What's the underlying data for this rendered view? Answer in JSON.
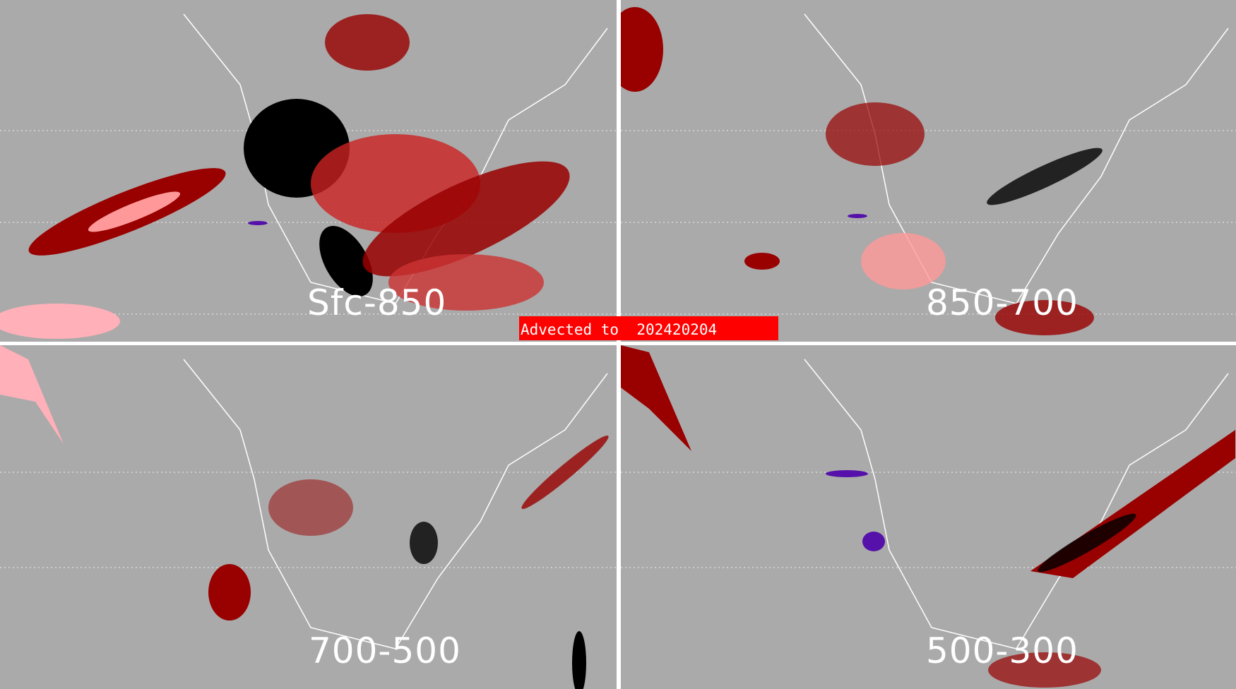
{
  "panels": [
    {
      "label": "Sfc-850"
    },
    {
      "label": "850-700"
    },
    {
      "label": "700-500"
    },
    {
      "label": "500-300"
    }
  ],
  "banner": {
    "text": "Advected to  202420204"
  },
  "colors": {
    "background": "#aaaaaa",
    "dark_red": "#990000",
    "light_red": "#ff9999",
    "pink": "#ffb0b8",
    "black": "#000000",
    "purple": "#5511aa",
    "coastline": "#ffffff",
    "banner": "#ff0000"
  }
}
